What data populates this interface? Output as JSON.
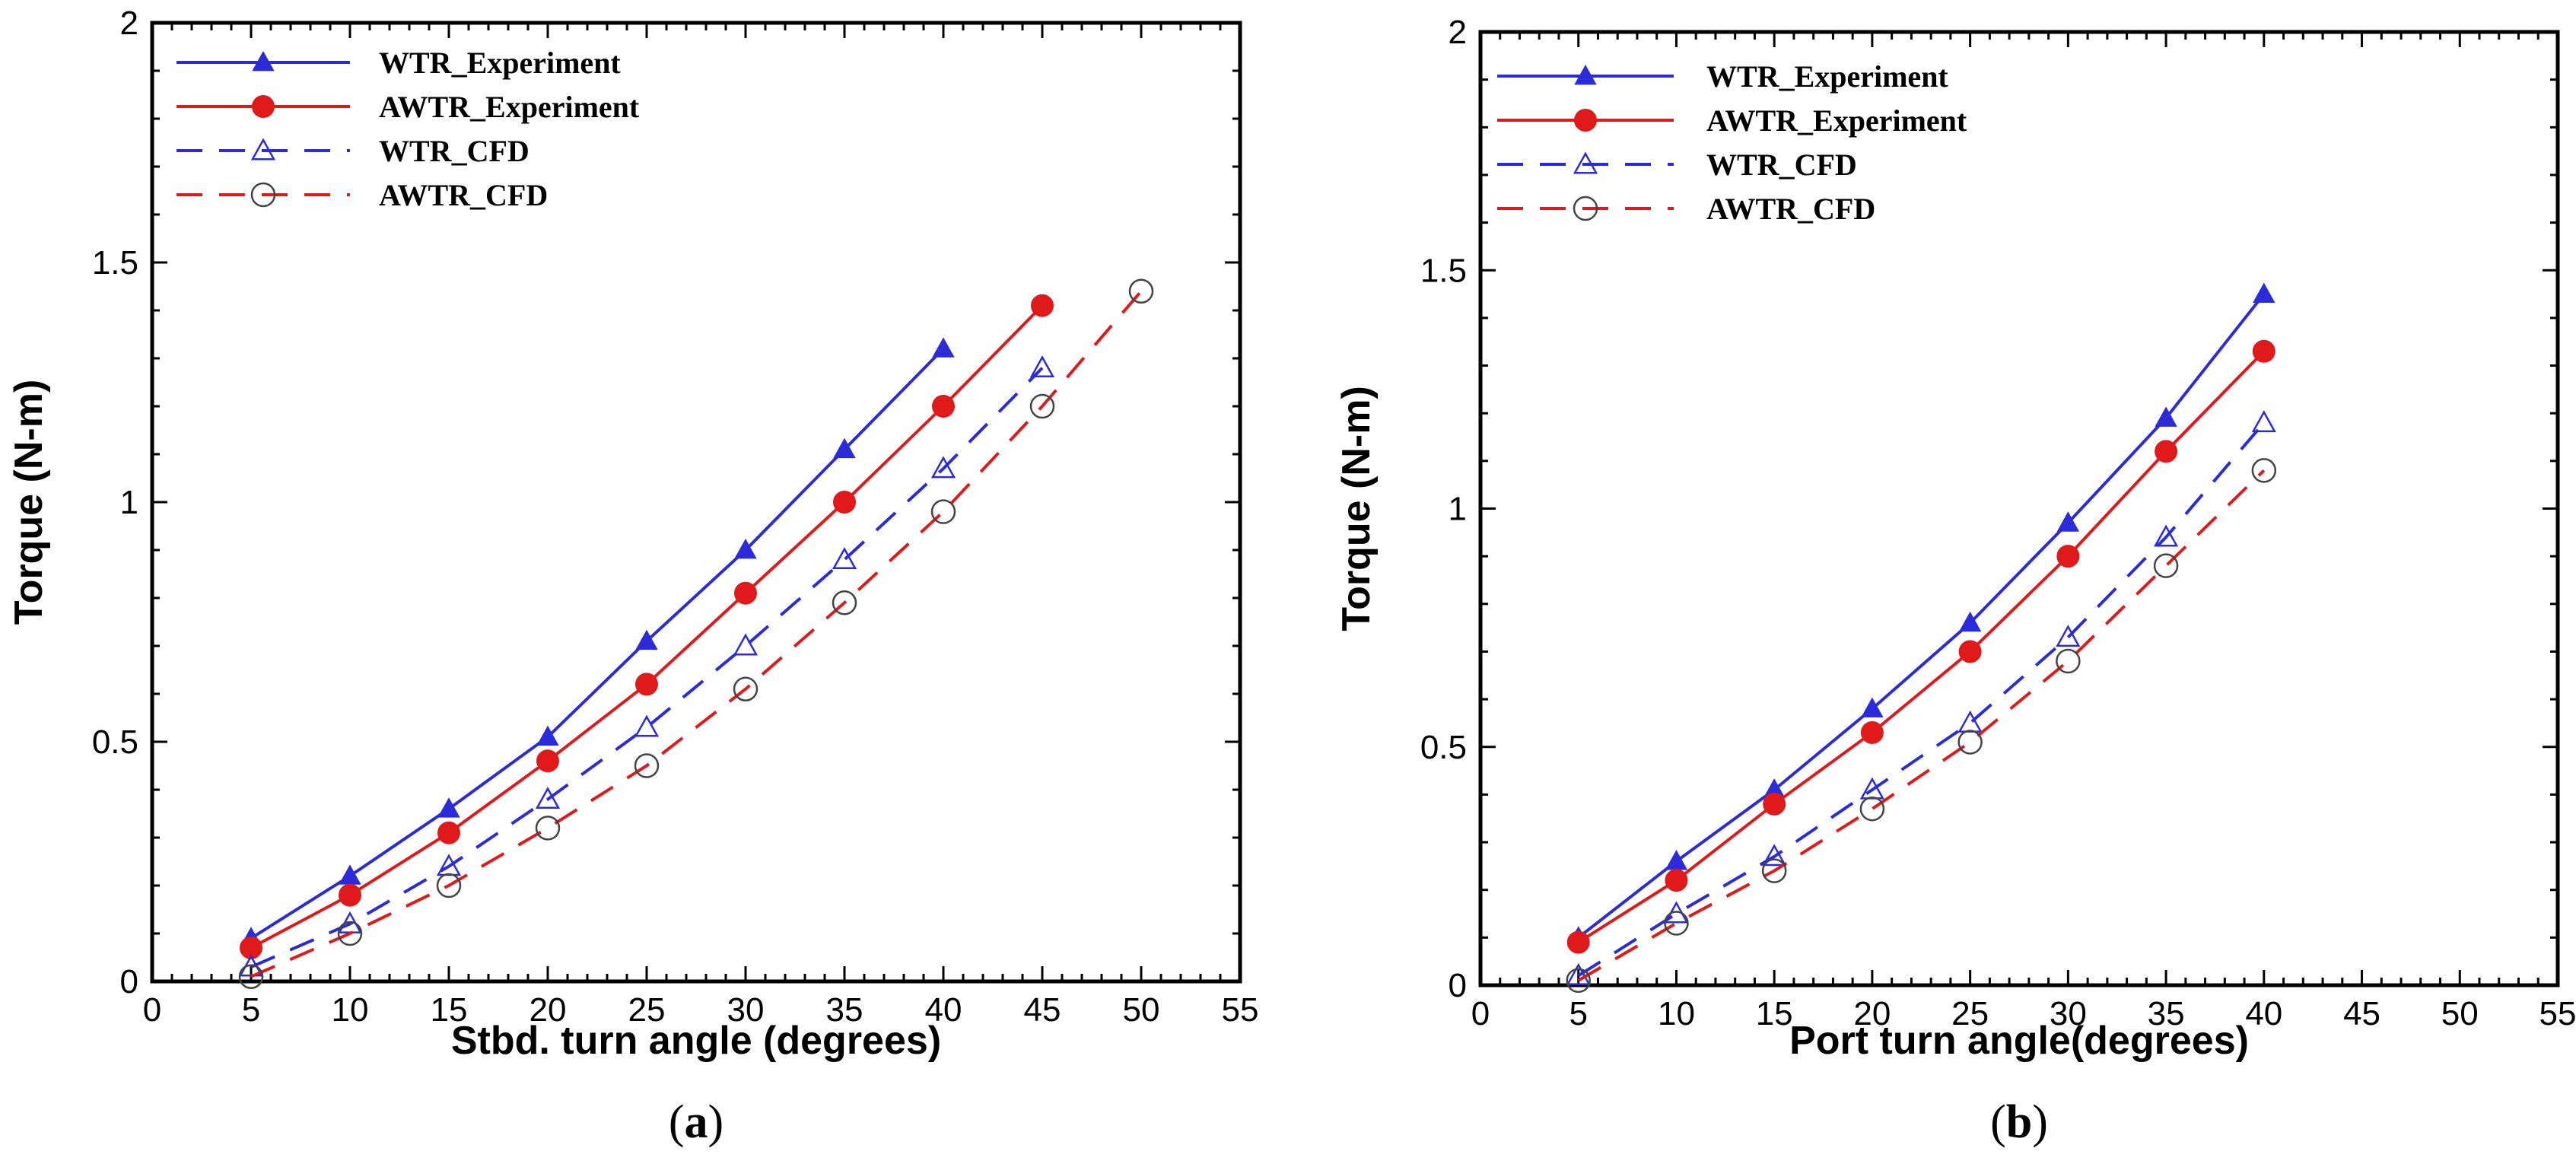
{
  "chart_data": [
    {
      "type": "line",
      "title": "",
      "caption_letter": "a",
      "xlabel": "Stbd. turn angle (degrees)",
      "ylabel": "Torque (N-m)",
      "xlim": [
        0,
        55
      ],
      "ylim": [
        0,
        2
      ],
      "xticks": [
        "0",
        "5",
        "10",
        "15",
        "20",
        "25",
        "30",
        "35",
        "40",
        "45",
        "50",
        "55"
      ],
      "yticks": [
        "0",
        "0.5",
        "1",
        "1.5",
        "2"
      ],
      "grid": false,
      "legend_position": "top-left",
      "series": [
        {
          "name": "WTR_Experiment",
          "color": "#2b2bd9",
          "style": "solid",
          "marker": "filled-triangle",
          "x": [
            5,
            10,
            15,
            20,
            25,
            30,
            35,
            40
          ],
          "y": [
            0.09,
            0.22,
            0.36,
            0.51,
            0.71,
            0.9,
            1.11,
            1.32
          ]
        },
        {
          "name": "AWTR_Experiment",
          "color": "#e0191b",
          "style": "solid",
          "marker": "filled-circle",
          "x": [
            5,
            10,
            15,
            20,
            25,
            30,
            35,
            40,
            45
          ],
          "y": [
            0.07,
            0.18,
            0.31,
            0.46,
            0.62,
            0.81,
            1.0,
            1.2,
            1.41
          ]
        },
        {
          "name": "WTR_CFD",
          "color": "#2b2bd9",
          "style": "dashed",
          "marker": "open-triangle",
          "x": [
            5,
            10,
            15,
            20,
            25,
            30,
            35,
            40,
            45
          ],
          "y": [
            0.03,
            0.12,
            0.24,
            0.38,
            0.53,
            0.7,
            0.88,
            1.07,
            1.28
          ]
        },
        {
          "name": "AWTR_CFD",
          "color": "#e0191b",
          "style": "dashed",
          "marker": "open-circle",
          "x": [
            5,
            10,
            15,
            20,
            25,
            30,
            35,
            40,
            45,
            50
          ],
          "y": [
            0.01,
            0.1,
            0.2,
            0.32,
            0.45,
            0.61,
            0.79,
            0.98,
            1.2,
            1.44
          ]
        }
      ]
    },
    {
      "type": "line",
      "title": "",
      "caption_letter": "b",
      "xlabel": "Port turn angle(degrees)",
      "ylabel": "Torque (N-m)",
      "xlim": [
        0,
        55
      ],
      "ylim": [
        0,
        2
      ],
      "xticks": [
        "0",
        "5",
        "10",
        "15",
        "20",
        "25",
        "30",
        "35",
        "40",
        "45",
        "50",
        "55"
      ],
      "yticks": [
        "0",
        "0.5",
        "1",
        "1.5",
        "2"
      ],
      "grid": false,
      "legend_position": "top-left",
      "series": [
        {
          "name": "WTR_Experiment",
          "color": "#2b2bd9",
          "style": "solid",
          "marker": "filled-triangle",
          "x": [
            5,
            10,
            15,
            20,
            25,
            30,
            35,
            40
          ],
          "y": [
            0.1,
            0.26,
            0.41,
            0.58,
            0.76,
            0.97,
            1.19,
            1.45
          ]
        },
        {
          "name": "AWTR_Experiment",
          "color": "#e0191b",
          "style": "solid",
          "marker": "filled-circle",
          "x": [
            5,
            10,
            15,
            20,
            25,
            30,
            35,
            40
          ],
          "y": [
            0.09,
            0.22,
            0.38,
            0.53,
            0.7,
            0.9,
            1.12,
            1.33
          ]
        },
        {
          "name": "WTR_CFD",
          "color": "#2b2bd9",
          "style": "dashed",
          "marker": "open-triangle",
          "x": [
            5,
            10,
            15,
            20,
            25,
            30,
            35,
            40
          ],
          "y": [
            0.02,
            0.15,
            0.27,
            0.41,
            0.55,
            0.73,
            0.94,
            1.18
          ]
        },
        {
          "name": "AWTR_CFD",
          "color": "#e0191b",
          "style": "dashed",
          "marker": "open-circle",
          "x": [
            5,
            10,
            15,
            20,
            25,
            30,
            35,
            40
          ],
          "y": [
            0.01,
            0.13,
            0.24,
            0.37,
            0.51,
            0.68,
            0.88,
            1.08
          ]
        }
      ]
    }
  ]
}
